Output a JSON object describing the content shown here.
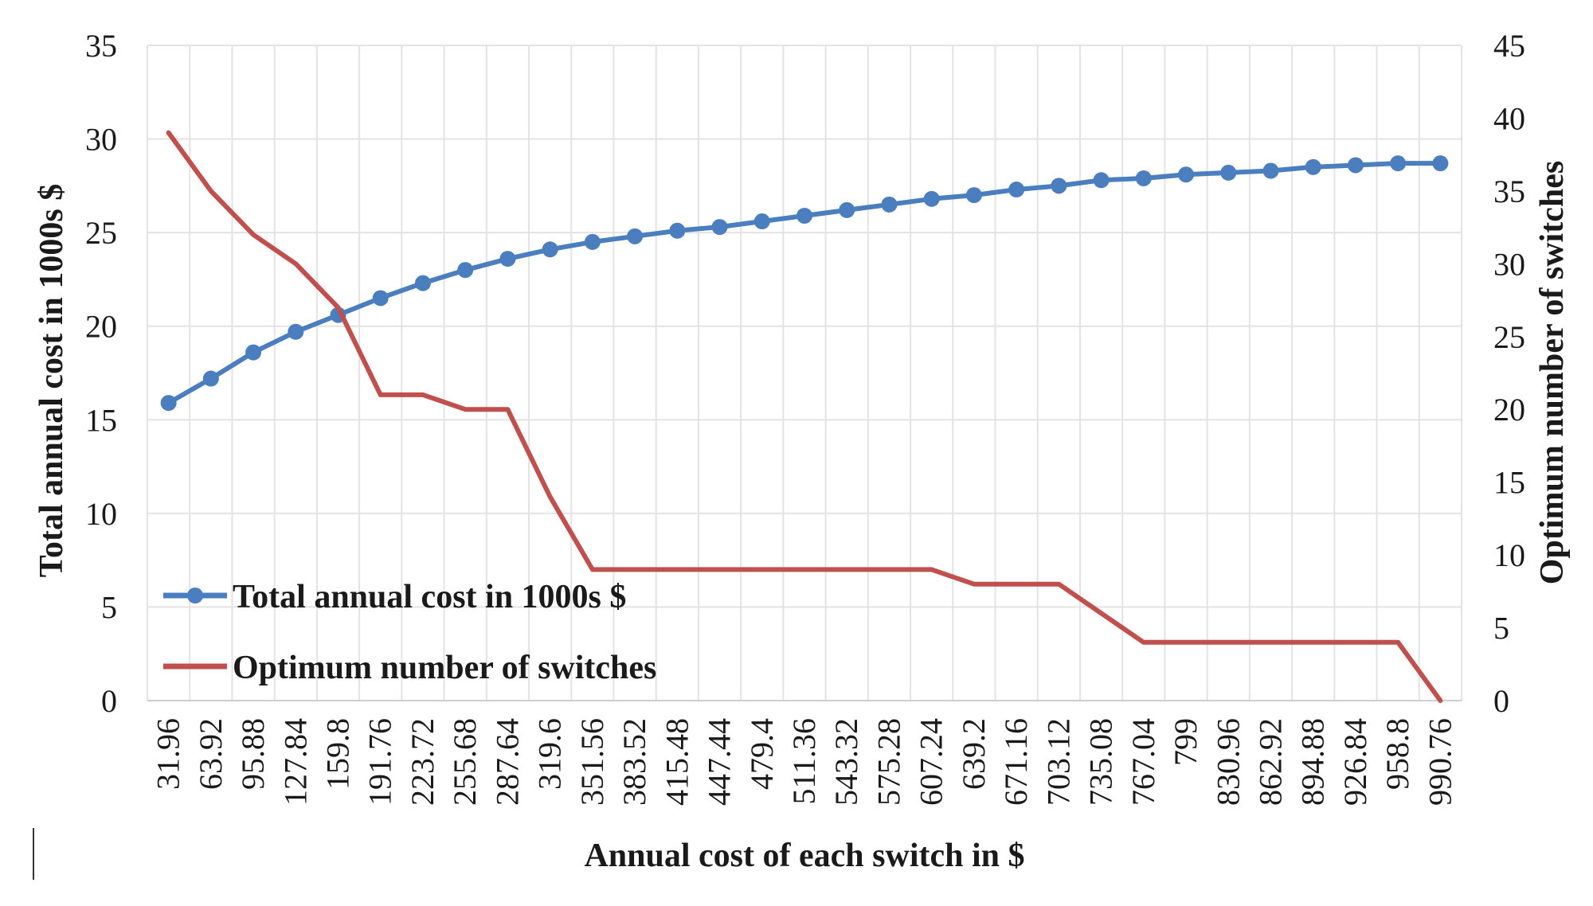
{
  "chart_data": {
    "type": "line",
    "title": "",
    "xlabel": "Annual cost of each switch in $",
    "ylabel_left": "Total annual cost in 1000s $",
    "ylabel_right": "Optimum number of switches",
    "ylim_left": [
      0,
      35
    ],
    "ylim_right": [
      0,
      45
    ],
    "yticks_left": [
      "0",
      "5",
      "10",
      "15",
      "20",
      "25",
      "30",
      "35"
    ],
    "yticks_right": [
      "0",
      "5",
      "10",
      "15",
      "20",
      "25",
      "30",
      "35",
      "40",
      "45"
    ],
    "categories": [
      "31.96",
      "63.92",
      "95.88",
      "127.84",
      "159.8",
      "191.76",
      "223.72",
      "255.68",
      "287.64",
      "319.6",
      "351.56",
      "383.52",
      "415.48",
      "447.44",
      "479.4",
      "511.36",
      "543.32",
      "575.28",
      "607.24",
      "639.2",
      "671.16",
      "703.12",
      "735.08",
      "767.04",
      "799",
      "830.96",
      "862.92",
      "894.88",
      "926.84",
      "958.8",
      "990.76"
    ],
    "grid": true,
    "legend_position": "bottom-left",
    "series": [
      {
        "name": "Total annual cost in 1000s $",
        "axis": "left",
        "color": "#4a7ebf",
        "markers": true,
        "values": [
          15.9,
          17.2,
          18.6,
          19.7,
          20.6,
          21.5,
          22.3,
          23.0,
          23.6,
          24.1,
          24.5,
          24.8,
          25.1,
          25.3,
          25.6,
          25.9,
          26.2,
          26.5,
          26.8,
          27.0,
          27.3,
          27.5,
          27.8,
          27.9,
          28.1,
          28.2,
          28.3,
          28.5,
          28.6,
          28.7,
          28.7
        ]
      },
      {
        "name": "Optimum number of switches",
        "axis": "right",
        "color": "#c0504d",
        "markers": false,
        "values": [
          39,
          35,
          32,
          30,
          27,
          21,
          21,
          20,
          20,
          14,
          9,
          9,
          9,
          9,
          9,
          9,
          9,
          9,
          9,
          8,
          8,
          8,
          6,
          4,
          4,
          4,
          4,
          4,
          4,
          4,
          0
        ]
      }
    ]
  }
}
